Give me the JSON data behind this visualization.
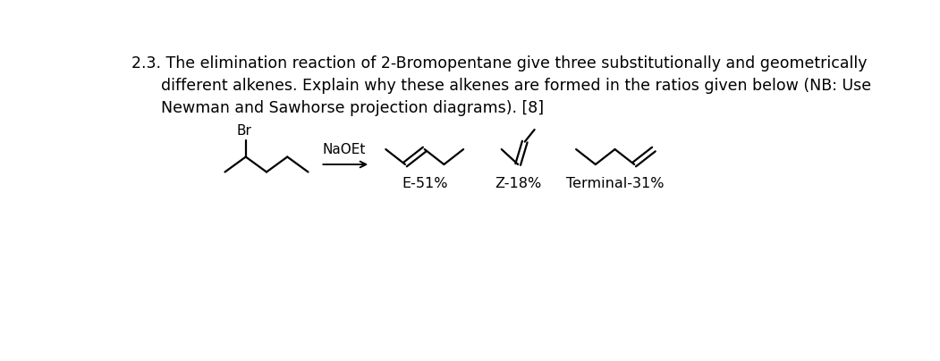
{
  "background_color": "#ffffff",
  "line_color": "#000000",
  "text_color": "#000000",
  "font_size_title": 12.5,
  "font_size_label": 11.5,
  "font_size_br": 11,
  "font_size_reagent": 11,
  "label_e": "E-51%",
  "label_z": "Z-18%",
  "label_t": "Terminal-31%",
  "reagent": "NaOEt",
  "br_label": "Br",
  "figsize": [
    10.51,
    4.04
  ],
  "dpi": 100,
  "line1": "2.3. The elimination reaction of 2-Bromopentane give three substitutionally and geometrically",
  "line2": "      different alkenes. Explain why these alkenes are formed in the ratios given below (NB: Use",
  "line3": "      Newman and Sawhorse projection diagrams). [8]"
}
